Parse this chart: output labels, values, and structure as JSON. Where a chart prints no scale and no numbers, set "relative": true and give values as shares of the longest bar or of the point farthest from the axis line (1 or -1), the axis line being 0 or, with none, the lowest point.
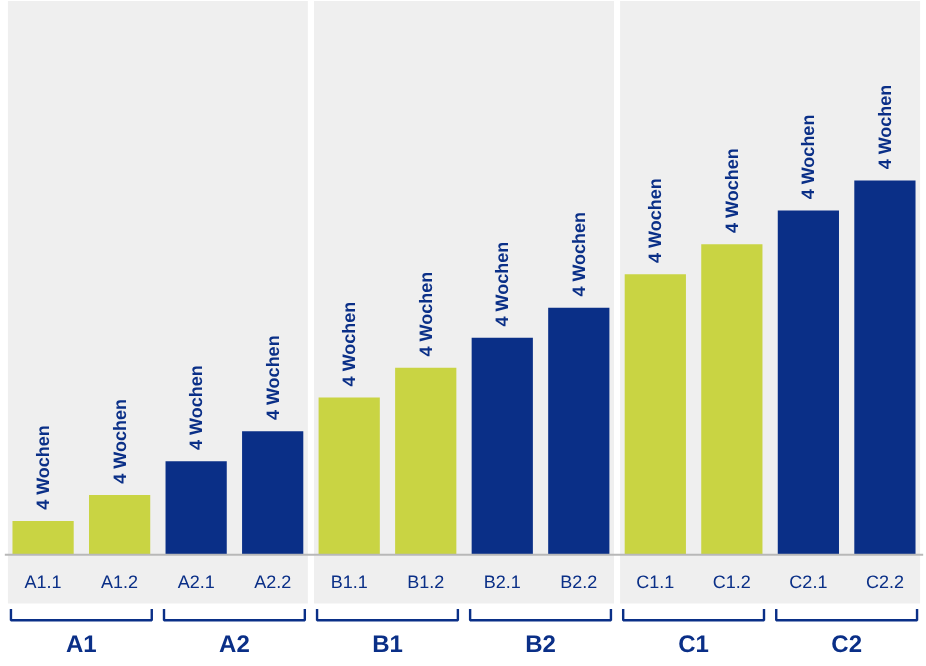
{
  "chart_data": {
    "type": "bar",
    "relative": true,
    "categories": [
      "A1.1",
      "A1.2",
      "A2.1",
      "A2.2",
      "B1.1",
      "B1.2",
      "B2.1",
      "B2.2",
      "C1.1",
      "C1.2",
      "C2.1",
      "C2.2"
    ],
    "values": [
      0.09,
      0.16,
      0.25,
      0.33,
      0.42,
      0.5,
      0.58,
      0.66,
      0.75,
      0.83,
      0.92,
      1
    ],
    "colors": [
      "#c9d443",
      "#c9d443",
      "#0a2f87",
      "#0a2f87",
      "#c9d443",
      "#c9d443",
      "#0a2f87",
      "#0a2f87",
      "#c9d443",
      "#c9d443",
      "#0a2f87",
      "#0a2f87"
    ],
    "annotations": [
      {
        "text": "4 Wochen",
        "x": "A1.1",
        "y": 0.09
      },
      {
        "text": "4 Wochen",
        "x": "A1.2",
        "y": 0.16
      },
      {
        "text": "4 Wochen",
        "x": "A2.1",
        "y": 0.25
      },
      {
        "text": "4 Wochen",
        "x": "A2.2",
        "y": 0.33
      },
      {
        "text": "4 Wochen",
        "x": "B1.1",
        "y": 0.42
      },
      {
        "text": "4 Wochen",
        "x": "B1.2",
        "y": 0.5
      },
      {
        "text": "4 Wochen",
        "x": "B2.1",
        "y": 0.58
      },
      {
        "text": "4 Wochen",
        "x": "B2.2",
        "y": 0.66
      },
      {
        "text": "4 Wochen",
        "x": "C1.1",
        "y": 0.75
      },
      {
        "text": "4 Wochen",
        "x": "C1.2",
        "y": 0.83
      },
      {
        "text": "4 Wochen",
        "x": "C2.1",
        "y": 0.92
      },
      {
        "text": "4 Wochen",
        "x": "C2.2",
        "y": 1
      },
      "A1",
      "A2",
      "B1",
      "B2",
      "C1",
      "C2"
    ],
    "bands": [
      {
        "axis": "x",
        "from": "A1.1",
        "to": "A2.2",
        "color": "#efefef"
      },
      {
        "axis": "x",
        "from": "B1.1",
        "to": "B2.2",
        "color": "#efefef"
      },
      {
        "axis": "x",
        "from": "C1.1",
        "to": "C2.2",
        "color": "#efefef"
      }
    ],
    "grid": false,
    "legend": false
  }
}
